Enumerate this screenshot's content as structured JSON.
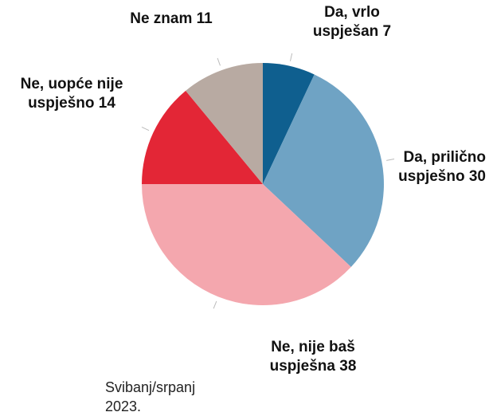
{
  "chart_data": {
    "type": "pie",
    "categories": [
      "Da, vrlo uspješan",
      "Da, prilično uspješno",
      "Ne, nije baš uspješna",
      "Ne, uopće nije uspješno",
      "Ne znam"
    ],
    "values": [
      7,
      30,
      38,
      14,
      11
    ],
    "colors": [
      "#0f5f8f",
      "#6fa3c4",
      "#f4a7ae",
      "#e32636",
      "#b8aaa2"
    ],
    "note": "Svibanj/srpanj 2023."
  }
}
